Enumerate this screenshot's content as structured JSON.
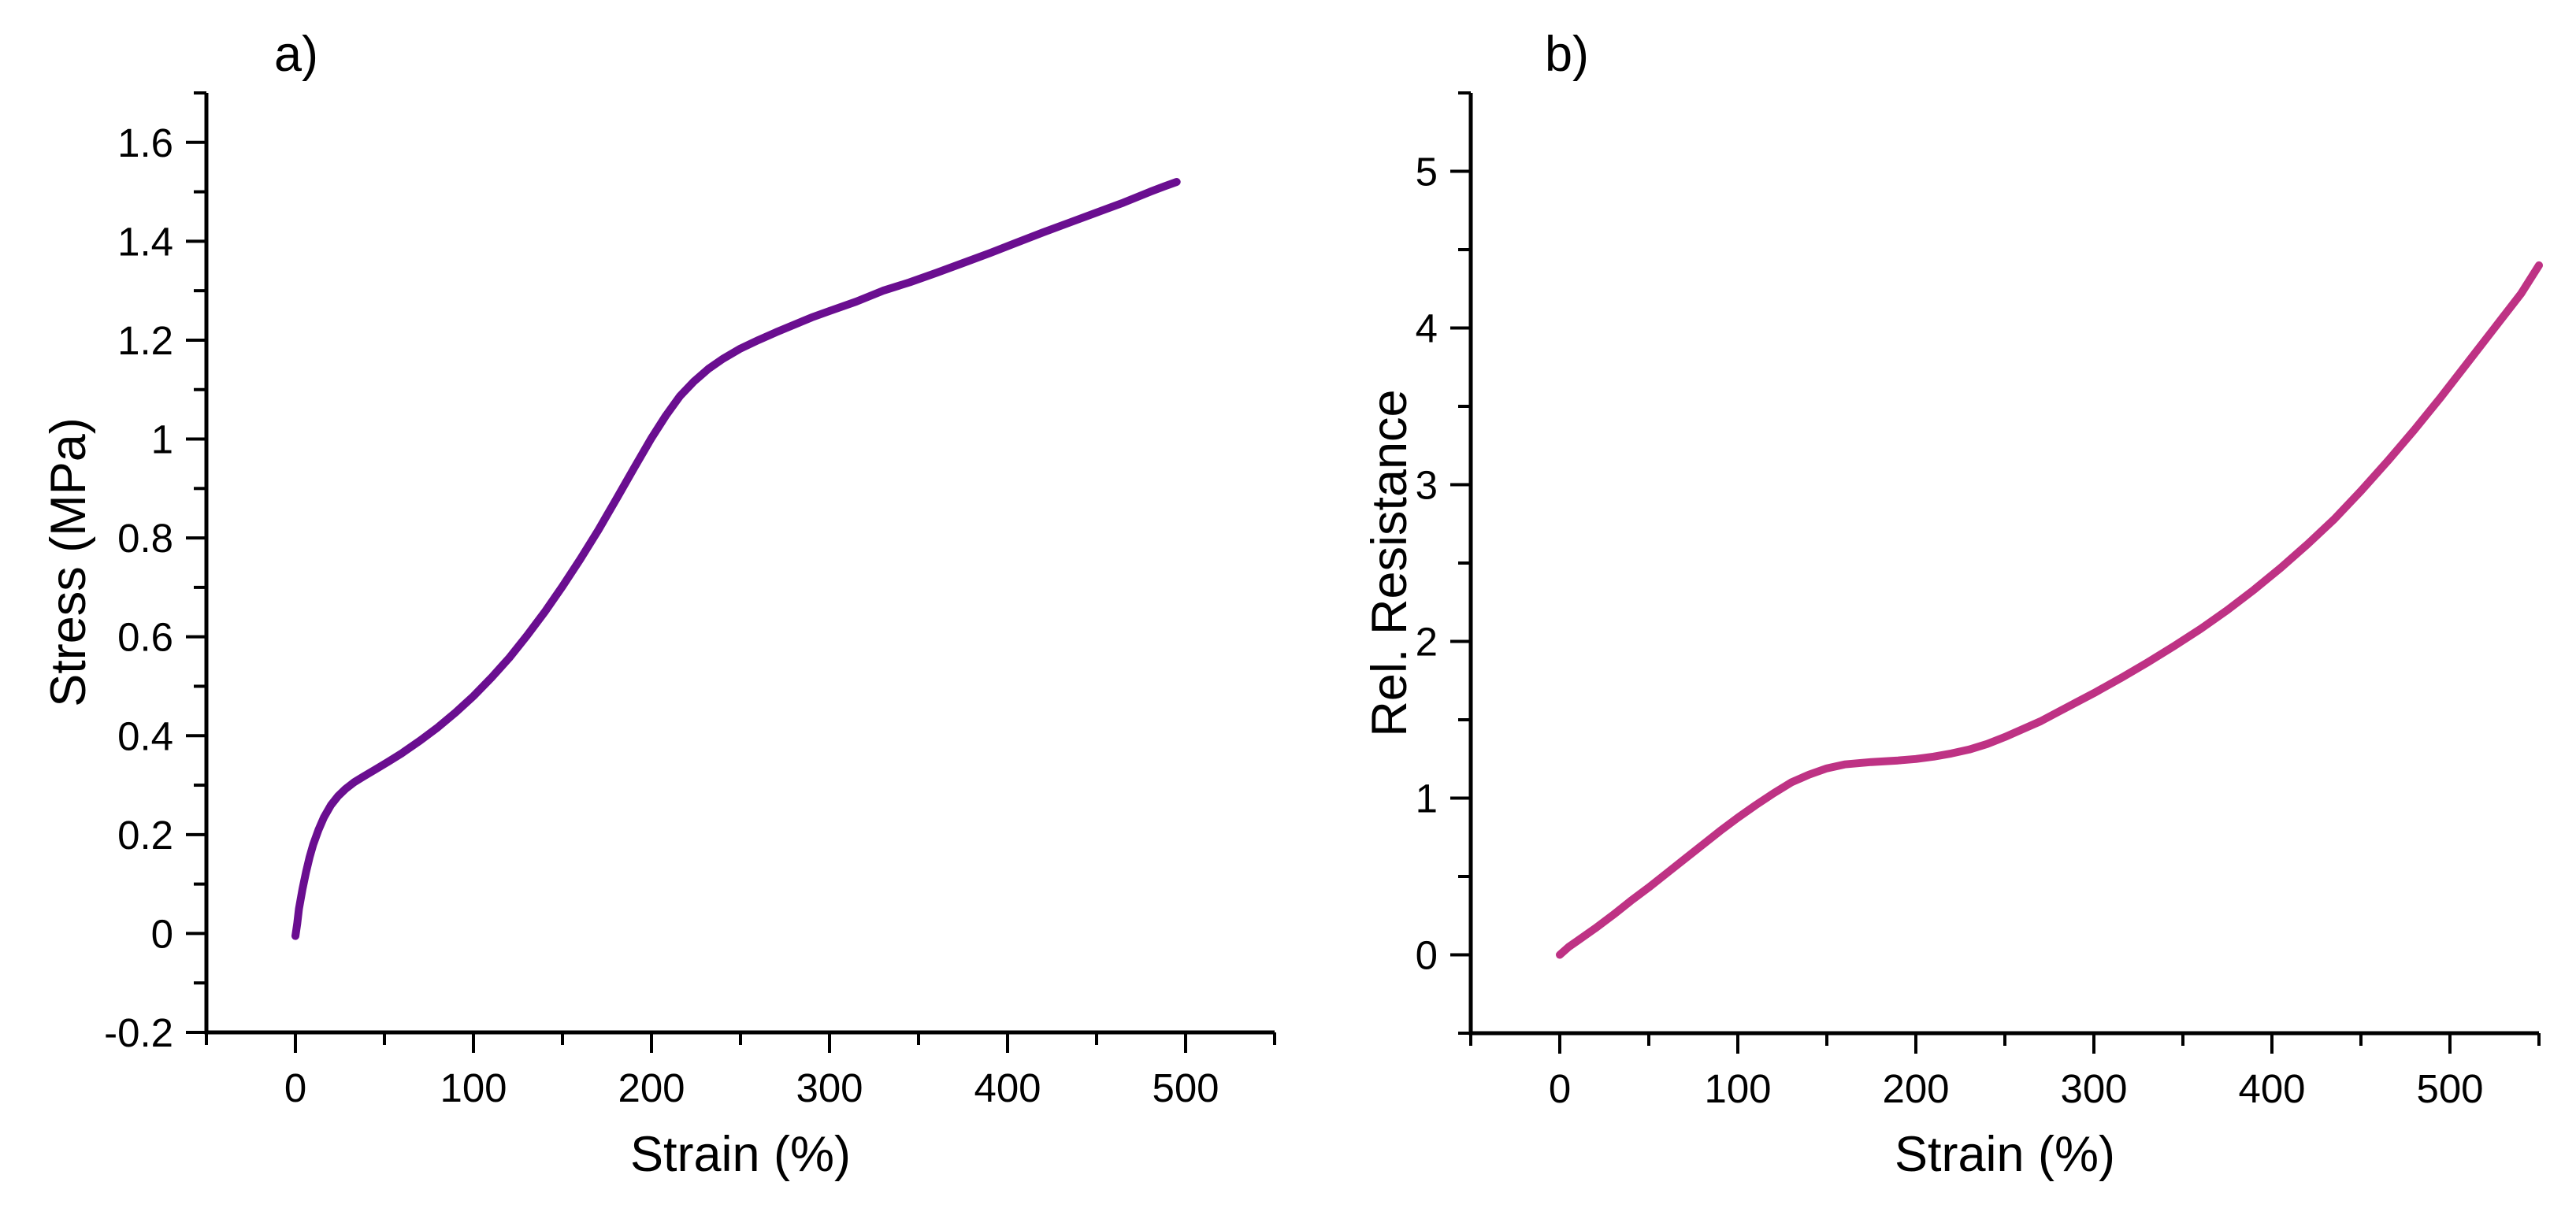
{
  "figure": {
    "background": "#ffffff",
    "axis_color": "#000000",
    "panel_a_label": "a)",
    "panel_b_label": "b)"
  },
  "chart_data": [
    {
      "panel": "a",
      "type": "line",
      "panel_label": "a)",
      "xlabel": "Strain (%)",
      "ylabel": "Stress (MPa)",
      "xlim": [
        -50,
        550
      ],
      "ylim": [
        -0.2,
        1.7
      ],
      "x_major_ticks": [
        0,
        100,
        200,
        300,
        400,
        500
      ],
      "x_tick_labels": [
        "0",
        "100",
        "200",
        "300",
        "400",
        "500"
      ],
      "x_minor_step": 50,
      "y_major_ticks": [
        -0.2,
        0,
        0.2,
        0.4,
        0.6,
        0.8,
        1,
        1.2,
        1.4,
        1.6
      ],
      "y_tick_labels": [
        "-0.2",
        "0",
        "0.2",
        "0.4",
        "0.6",
        "0.8",
        "1",
        "1.2",
        "1.4",
        "1.6"
      ],
      "y_minor_step": 0.1,
      "grid": false,
      "legend": "none",
      "line_color": "#6A0E90",
      "series": [
        {
          "name": "stress_vs_strain",
          "x": [
            0,
            1,
            2,
            4,
            6,
            8,
            10,
            13,
            16,
            20,
            24,
            28,
            33,
            38,
            45,
            52,
            60,
            70,
            80,
            90,
            100,
            110,
            120,
            130,
            140,
            150,
            160,
            170,
            180,
            190,
            200,
            208,
            216,
            224,
            232,
            240,
            250,
            260,
            270,
            280,
            290,
            300,
            315,
            330,
            345,
            360,
            375,
            390,
            405,
            420,
            435,
            450,
            465,
            480,
            488,
            495
          ],
          "y": [
            -0.005,
            0.02,
            0.05,
            0.09,
            0.125,
            0.155,
            0.18,
            0.21,
            0.235,
            0.26,
            0.278,
            0.292,
            0.306,
            0.317,
            0.332,
            0.347,
            0.365,
            0.39,
            0.417,
            0.447,
            0.48,
            0.517,
            0.557,
            0.602,
            0.65,
            0.702,
            0.757,
            0.815,
            0.877,
            0.94,
            1.002,
            1.047,
            1.087,
            1.117,
            1.142,
            1.162,
            1.183,
            1.2,
            1.216,
            1.231,
            1.246,
            1.259,
            1.278,
            1.3,
            1.317,
            1.336,
            1.356,
            1.376,
            1.397,
            1.418,
            1.438,
            1.458,
            1.478,
            1.5,
            1.511,
            1.52
          ]
        }
      ]
    },
    {
      "panel": "b",
      "type": "line",
      "panel_label": "b)",
      "xlabel": "Strain (%)",
      "ylabel": "Rel. Resistance",
      "xlim": [
        -50,
        550
      ],
      "ylim": [
        -0.5,
        5.5
      ],
      "x_major_ticks": [
        0,
        100,
        200,
        300,
        400,
        500
      ],
      "x_tick_labels": [
        "0",
        "100",
        "200",
        "300",
        "400",
        "500"
      ],
      "x_minor_step": 50,
      "y_major_ticks": [
        0,
        1,
        2,
        3,
        4,
        5
      ],
      "y_tick_labels": [
        "0",
        "1",
        "2",
        "3",
        "4",
        "5"
      ],
      "y_minor_step": 0.5,
      "grid": false,
      "legend": "none",
      "line_color": "#BE3284",
      "series": [
        {
          "name": "rel_resistance_vs_strain",
          "x": [
            0,
            5,
            10,
            20,
            30,
            40,
            50,
            60,
            70,
            80,
            90,
            100,
            110,
            120,
            130,
            140,
            150,
            160,
            175,
            190,
            200,
            210,
            220,
            230,
            240,
            250,
            260,
            270,
            280,
            290,
            300,
            315,
            330,
            345,
            360,
            375,
            390,
            405,
            420,
            435,
            450,
            465,
            480,
            495,
            510,
            525,
            540,
            550
          ],
          "y": [
            0,
            0.05,
            0.09,
            0.17,
            0.255,
            0.345,
            0.43,
            0.52,
            0.61,
            0.7,
            0.79,
            0.875,
            0.955,
            1.03,
            1.1,
            1.15,
            1.19,
            1.215,
            1.23,
            1.24,
            1.25,
            1.265,
            1.285,
            1.31,
            1.345,
            1.39,
            1.44,
            1.49,
            1.55,
            1.61,
            1.67,
            1.765,
            1.865,
            1.97,
            2.08,
            2.2,
            2.33,
            2.47,
            2.62,
            2.78,
            2.96,
            3.15,
            3.35,
            3.56,
            3.78,
            4.0,
            4.22,
            4.4
          ]
        }
      ]
    }
  ]
}
